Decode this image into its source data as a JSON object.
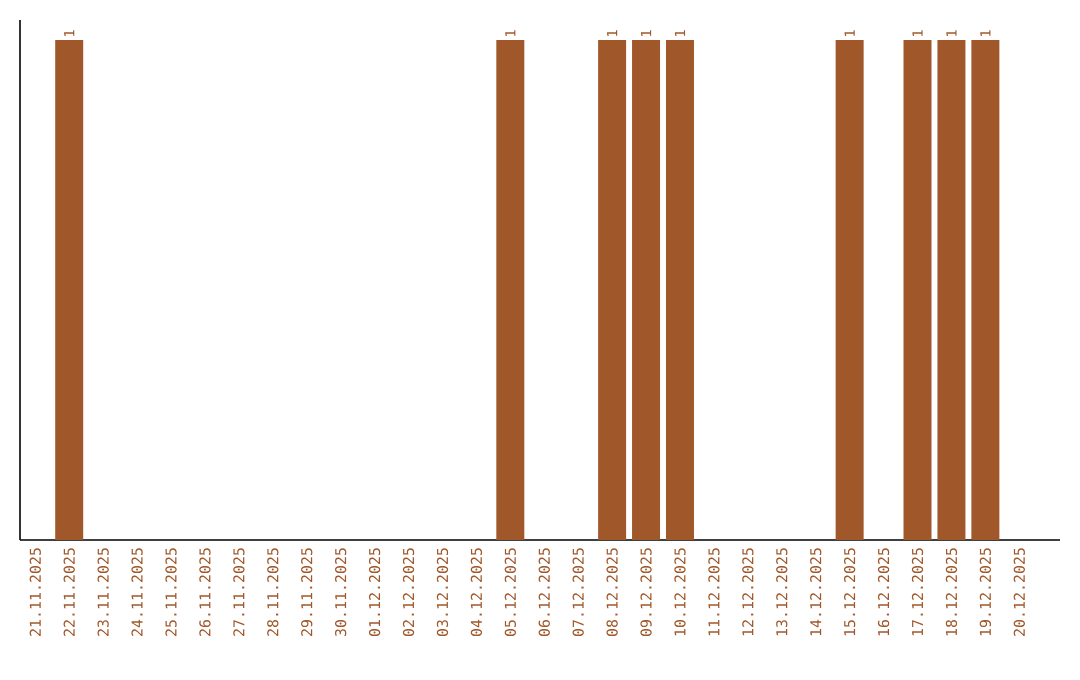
{
  "chart_data": {
    "type": "bar",
    "categories": [
      "21.11.2025",
      "22.11.2025",
      "23.11.2025",
      "24.11.2025",
      "25.11.2025",
      "26.11.2025",
      "27.11.2025",
      "28.11.2025",
      "29.11.2025",
      "30.11.2025",
      "01.12.2025",
      "02.12.2025",
      "03.12.2025",
      "04.12.2025",
      "05.12.2025",
      "06.12.2025",
      "07.12.2025",
      "08.12.2025",
      "09.12.2025",
      "10.12.2025",
      "11.12.2025",
      "12.12.2025",
      "13.12.2025",
      "14.12.2025",
      "15.12.2025",
      "16.12.2025",
      "17.12.2025",
      "18.12.2025",
      "19.12.2025",
      "20.12.2025"
    ],
    "values": [
      null,
      1,
      null,
      null,
      null,
      null,
      null,
      null,
      null,
      null,
      null,
      null,
      null,
      null,
      1,
      null,
      null,
      1,
      1,
      1,
      null,
      null,
      null,
      null,
      1,
      null,
      1,
      1,
      1,
      null
    ],
    "color": "#a0572a",
    "data_labels": true
  }
}
